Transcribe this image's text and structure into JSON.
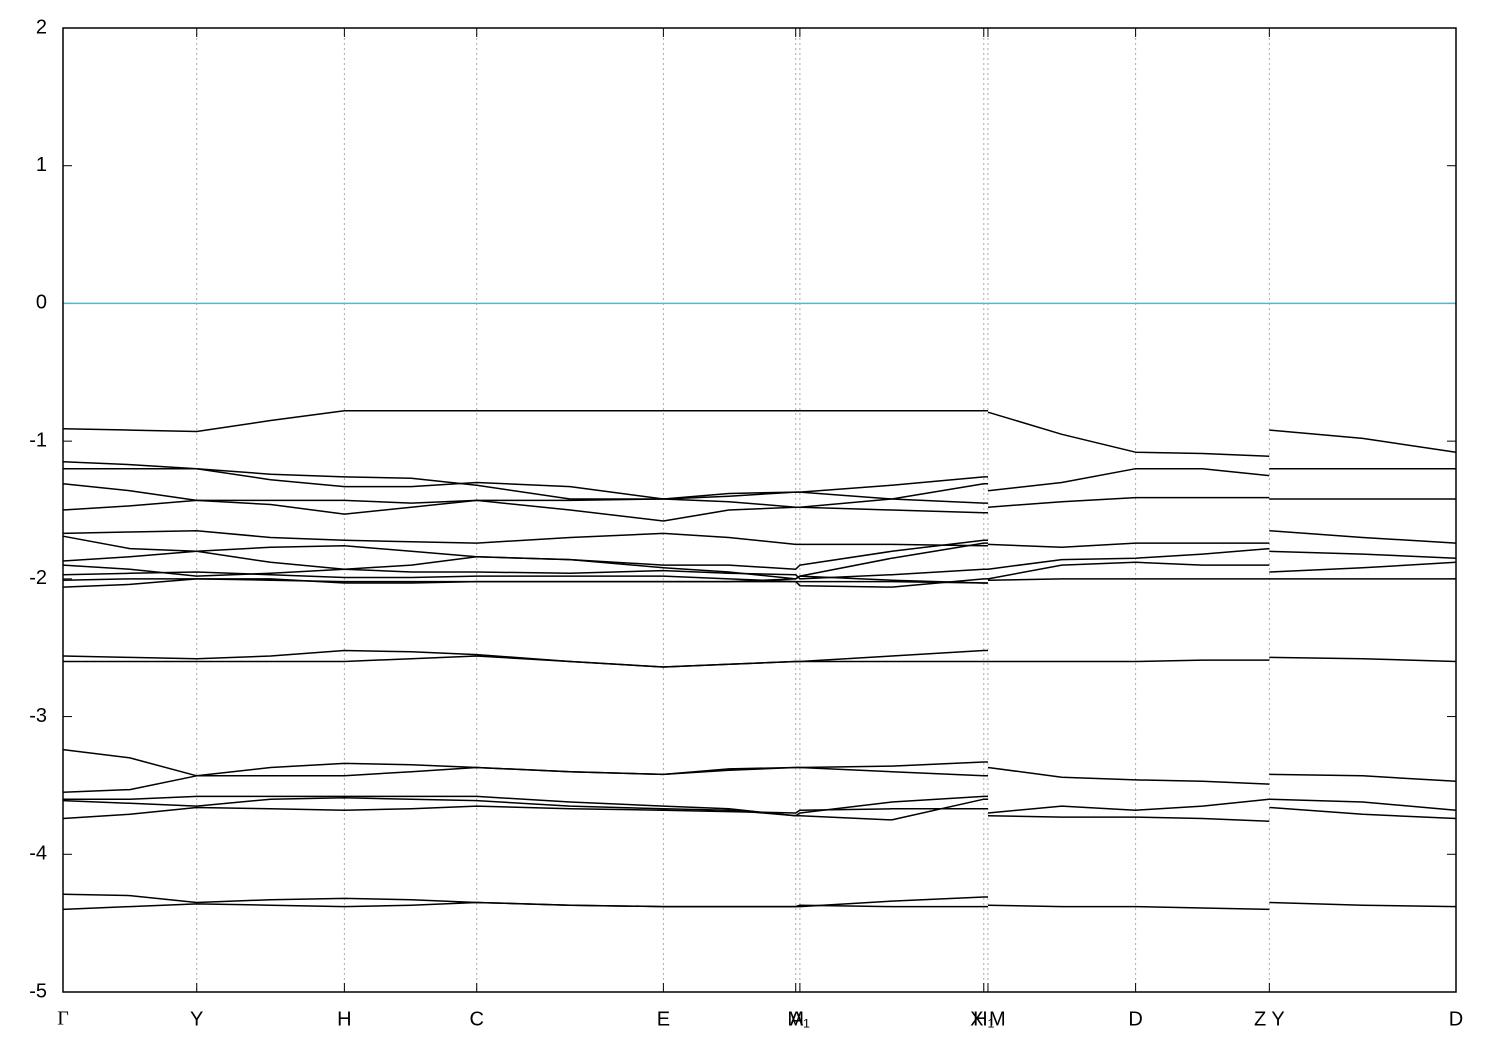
{
  "chart_data": {
    "type": "line",
    "color": "#000000",
    "reference_line": {
      "value": 0,
      "color": "#5ab4cc"
    },
    "grid": true,
    "xlim": [
      0,
      1
    ],
    "xticks": [
      {
        "value": 0,
        "label": "Γ"
      },
      {
        "value": 0.096,
        "label": "Y"
      },
      {
        "value": 0.202,
        "label": "H"
      },
      {
        "value": 0.297,
        "label": "C"
      },
      {
        "value": 0.431,
        "label": "E"
      },
      {
        "value": 0.526,
        "label": "M"
      },
      {
        "value": 0.529,
        "label": "A₁"
      },
      {
        "value": 0.661,
        "label": "H₁"
      },
      {
        "value": 0.664,
        "label": "X M"
      },
      {
        "value": 0.77,
        "label": "D"
      },
      {
        "value": 0.866,
        "label": "Z Y"
      },
      {
        "value": 1,
        "label": "D"
      }
    ],
    "ylim": [
      -5,
      2
    ],
    "yticks": [
      -5,
      -4,
      -3,
      -2,
      -1,
      0,
      1,
      2
    ],
    "x": [
      0,
      0.048,
      0.096,
      0.149,
      0.202,
      0.25,
      0.297,
      0.364,
      0.431,
      0.478,
      0.526,
      0.529,
      0.595,
      0.661,
      0.664,
      0.664,
      0.664,
      0.717,
      0.77,
      0.818,
      0.866,
      0.866,
      0.866,
      0.933,
      1
    ],
    "series": [
      {
        "values": [
          -0.91,
          -0.92,
          -0.93,
          -0.85,
          -0.78,
          -0.78,
          -0.78,
          -0.78,
          -0.78,
          -0.78,
          -0.78,
          -0.78,
          -0.78,
          -0.78,
          -0.78,
          null,
          -0.79,
          -0.95,
          -1.08,
          -1.09,
          -1.11,
          null,
          -0.92,
          -0.98,
          -1.08
        ]
      },
      {
        "values": [
          -1.15,
          -1.17,
          -1.2,
          -1.24,
          -1.26,
          -1.27,
          -1.32,
          -1.42,
          -1.42,
          -1.4,
          -1.37,
          -1.37,
          -1.32,
          -1.26,
          -1.26,
          null,
          -1.36,
          -1.3,
          -1.2,
          -1.2,
          -1.25,
          null,
          -1.2,
          -1.2,
          -1.2
        ]
      },
      {
        "values": [
          -1.2,
          -1.2,
          -1.2,
          -1.28,
          -1.33,
          -1.33,
          -1.3,
          -1.33,
          -1.42,
          -1.44,
          -1.48,
          -1.48,
          -1.42,
          -1.31,
          -1.31,
          null,
          -1.48,
          -1.44,
          -1.41,
          -1.41,
          -1.41,
          null,
          -1.42,
          -1.42,
          -1.42
        ]
      },
      {
        "values": [
          -1.31,
          -1.36,
          -1.43,
          -1.46,
          -1.53,
          -1.48,
          -1.43,
          -1.5,
          -1.58,
          -1.5,
          -1.48,
          -1.48,
          -1.5,
          -1.52,
          -1.52,
          null,
          -1.75,
          -1.77,
          -1.74,
          -1.74,
          -1.74,
          null,
          -1.65,
          -1.7,
          -1.74
        ]
      },
      {
        "values": [
          -1.5,
          -1.47,
          -1.43,
          -1.43,
          -1.43,
          -1.45,
          -1.43,
          -1.43,
          -1.42,
          -1.38,
          -1.37,
          -1.37,
          -1.42,
          -1.45,
          -1.45,
          null,
          -1.93,
          -1.86,
          -1.85,
          -1.82,
          -1.78,
          null,
          -1.8,
          -1.82,
          -1.85
        ]
      },
      {
        "values": [
          -1.67,
          -1.66,
          -1.65,
          -1.7,
          -1.72,
          -1.73,
          -1.74,
          -1.7,
          -1.67,
          -1.7,
          -1.75,
          -1.75,
          -1.75,
          -1.76,
          -1.76,
          null,
          -2.0,
          -1.9,
          -1.88,
          -1.9,
          -1.9,
          null,
          -1.95,
          -1.92,
          -1.88
        ]
      },
      {
        "values": [
          -1.69,
          -1.78,
          -1.8,
          -1.77,
          -1.76,
          -1.8,
          -1.84,
          -1.86,
          -1.9,
          -1.9,
          -1.93,
          -1.9,
          -1.8,
          -1.72,
          -1.72,
          null,
          -2.01,
          -2.0,
          -2.0,
          -2.0,
          -2.0,
          null,
          -2.0,
          -2.0,
          -2.0
        ]
      },
      {
        "values": [
          -1.87,
          -1.84,
          -1.8,
          -1.88,
          -1.93,
          -1.9,
          -1.84,
          -1.86,
          -1.92,
          -1.95,
          -2.0,
          -1.98,
          -1.85,
          -1.74,
          -1.74,
          null,
          null,
          null,
          null,
          null,
          null,
          null,
          null,
          null,
          null
        ]
      },
      {
        "values": [
          -1.9,
          -1.93,
          -1.98,
          -1.96,
          -1.93,
          -1.95,
          -1.95,
          -1.96,
          -1.94,
          -1.96,
          -1.97,
          -2.0,
          -1.97,
          -1.93,
          -1.93,
          null,
          null,
          null,
          null,
          null,
          null,
          null,
          null,
          null,
          null
        ]
      },
      {
        "values": [
          -1.97,
          -1.96,
          -1.95,
          -1.97,
          -1.99,
          -1.99,
          -1.98,
          -1.98,
          -1.98,
          -2.0,
          -2.02,
          -2.05,
          -2.06,
          -2.0,
          -2.0,
          null,
          null,
          null,
          null,
          null,
          null,
          null,
          null,
          null,
          null
        ]
      },
      {
        "values": [
          -2.01,
          -2.0,
          -2.0,
          -2.01,
          -2.02,
          -2.02,
          -2.02,
          -2.02,
          -2.02,
          -2.02,
          -2.0,
          -1.98,
          -2.01,
          -2.03,
          -2.03,
          null,
          null,
          null,
          null,
          null,
          null,
          null,
          null,
          null,
          null
        ]
      },
      {
        "values": [
          -2.06,
          -2.04,
          -2.0,
          -2.0,
          -2.03,
          -2.03,
          -2.02,
          -2.02,
          -2.02,
          -2.02,
          -2.02,
          -2.02,
          -2.02,
          -2.03,
          -2.03,
          null,
          null,
          null,
          null,
          null,
          null,
          null,
          null,
          null,
          null
        ]
      },
      {
        "values": [
          -2.56,
          -2.57,
          -2.58,
          -2.56,
          -2.52,
          -2.53,
          -2.55,
          -2.6,
          -2.64,
          -2.62,
          -2.6,
          -2.6,
          -2.56,
          -2.52,
          -2.52,
          null,
          -2.6,
          -2.6,
          -2.6,
          -2.59,
          -2.59,
          null,
          -2.57,
          -2.58,
          -2.6
        ]
      },
      {
        "values": [
          -2.6,
          -2.6,
          -2.6,
          -2.6,
          -2.6,
          -2.58,
          -2.56,
          -2.6,
          -2.64,
          -2.62,
          -2.6,
          -2.6,
          -2.6,
          -2.6,
          -2.6,
          null,
          null,
          null,
          null,
          null,
          null,
          null,
          null,
          null,
          null
        ]
      },
      {
        "values": [
          -3.24,
          -3.3,
          -3.43,
          -3.37,
          -3.34,
          -3.35,
          -3.37,
          -3.4,
          -3.42,
          -3.38,
          -3.37,
          -3.37,
          -3.36,
          -3.33,
          -3.33,
          null,
          -3.37,
          -3.44,
          -3.46,
          -3.47,
          -3.49,
          null,
          -3.42,
          -3.43,
          -3.47
        ]
      },
      {
        "values": [
          -3.55,
          -3.53,
          -3.43,
          -3.43,
          -3.43,
          -3.4,
          -3.37,
          -3.4,
          -3.42,
          -3.39,
          -3.37,
          -3.37,
          -3.4,
          -3.43,
          -3.43,
          null,
          -3.7,
          -3.65,
          -3.68,
          -3.65,
          -3.6,
          null,
          -3.6,
          -3.62,
          -3.68
        ]
      },
      {
        "values": [
          -3.6,
          -3.6,
          -3.58,
          -3.58,
          -3.58,
          -3.58,
          -3.58,
          -3.62,
          -3.65,
          -3.67,
          -3.72,
          -3.7,
          -3.62,
          -3.58,
          -3.58,
          null,
          -3.72,
          -3.73,
          -3.73,
          -3.74,
          -3.76,
          null,
          -3.66,
          -3.71,
          -3.74
        ]
      },
      {
        "values": [
          -3.61,
          -3.63,
          -3.65,
          -3.6,
          -3.59,
          -3.6,
          -3.61,
          -3.65,
          -3.67,
          -3.68,
          -3.72,
          -3.72,
          -3.75,
          -3.6,
          -3.6,
          null,
          null,
          null,
          null,
          null,
          null,
          null,
          null,
          null,
          null
        ]
      },
      {
        "values": [
          -3.74,
          -3.71,
          -3.66,
          -3.67,
          -3.68,
          -3.67,
          -3.65,
          -3.67,
          -3.68,
          -3.69,
          -3.7,
          -3.68,
          -3.67,
          -3.67,
          -3.67,
          null,
          null,
          null,
          null,
          null,
          null,
          null,
          null,
          null,
          null
        ]
      },
      {
        "values": [
          -4.29,
          -4.3,
          -4.35,
          -4.33,
          -4.32,
          -4.33,
          -4.35,
          -4.37,
          -4.38,
          -4.38,
          -4.38,
          -4.38,
          -4.34,
          -4.31,
          -4.31,
          null,
          -4.37,
          -4.38,
          -4.38,
          -4.39,
          -4.4,
          null,
          -4.35,
          -4.37,
          -4.38
        ]
      },
      {
        "values": [
          -4.4,
          -4.38,
          -4.36,
          -4.37,
          -4.38,
          -4.37,
          -4.35,
          -4.37,
          -4.38,
          -4.38,
          -4.38,
          -4.37,
          -4.38,
          -4.38,
          -4.38,
          null,
          null,
          null,
          null,
          null,
          null,
          null,
          null,
          null,
          null
        ]
      }
    ]
  }
}
